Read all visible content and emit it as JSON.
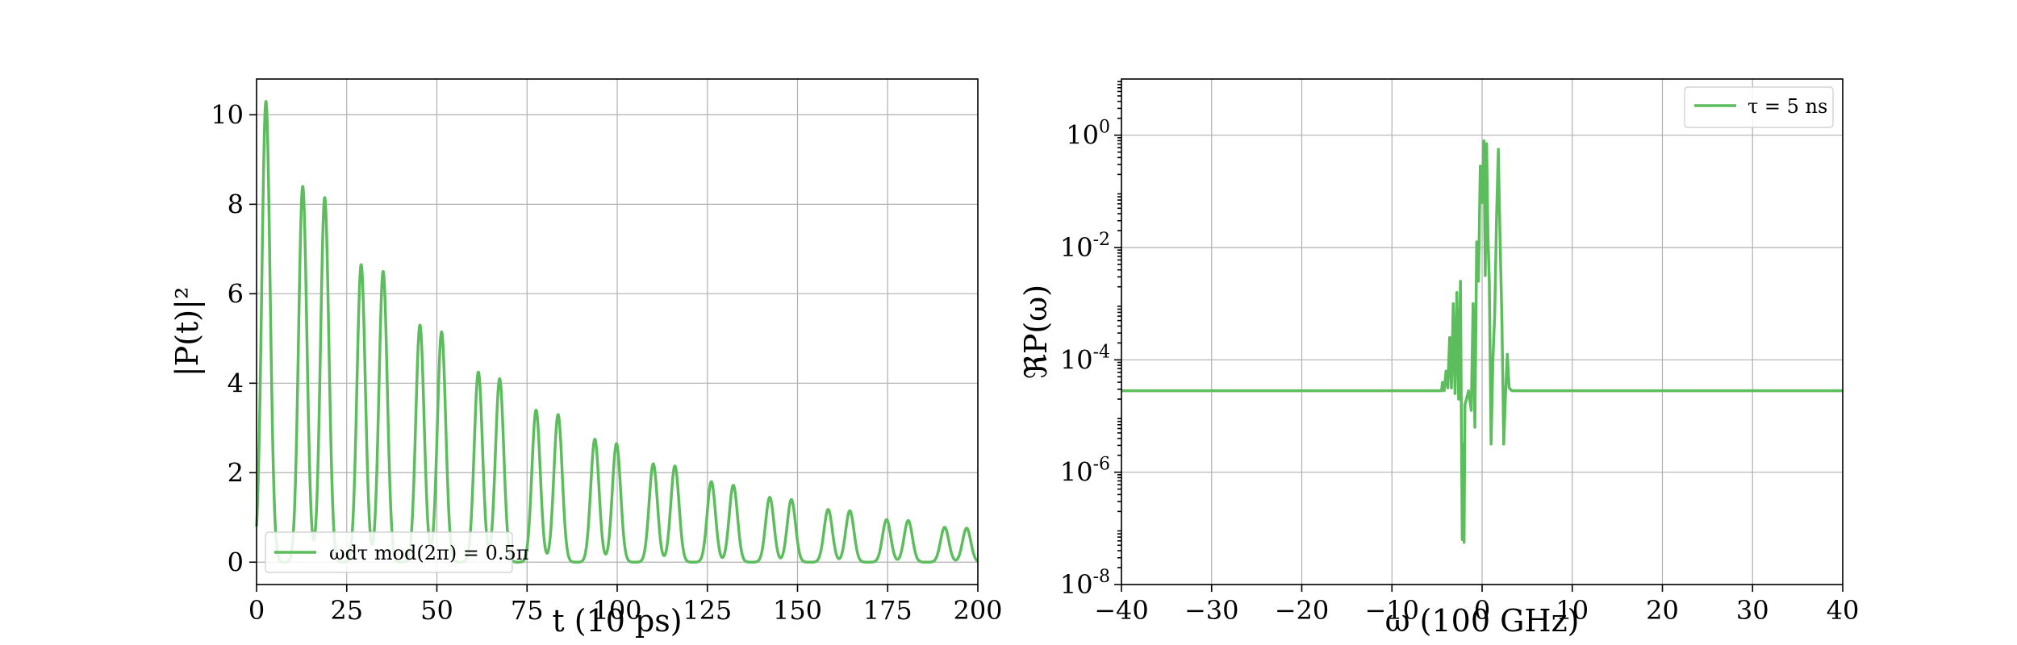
{
  "figure": {
    "line_color": "#5cbd5c",
    "grid_color": "#b0b0b0"
  },
  "chart_data": [
    {
      "type": "line",
      "title": "",
      "xlabel": "t (10 ps)",
      "ylabel": "|P(t)|²",
      "xlim": [
        0,
        200
      ],
      "ylim": [
        -0.5,
        10.8
      ],
      "grid": true,
      "legend_position": "lower-left",
      "x_ticks": [
        0,
        25,
        50,
        75,
        100,
        125,
        150,
        175,
        200
      ],
      "x_tick_labels": [
        "0",
        "25",
        "50",
        "75",
        "100",
        "125",
        "150",
        "175",
        "200"
      ],
      "y_ticks": [
        0,
        2,
        4,
        6,
        8,
        10
      ],
      "y_tick_labels": [
        "0",
        "2",
        "4",
        "6",
        "8",
        "10"
      ],
      "series": [
        {
          "name": "ωdτ mod(2π) = 0.5π",
          "color": "#5cbd5c",
          "peaks": [
            {
              "t": 2.6,
              "value": 10.3
            },
            {
              "t": 12.8,
              "value": 8.4
            },
            {
              "t": 18.9,
              "value": 8.15
            },
            {
              "t": 29.0,
              "value": 6.65
            },
            {
              "t": 35.1,
              "value": 6.5
            },
            {
              "t": 45.3,
              "value": 5.3
            },
            {
              "t": 51.3,
              "value": 5.15
            },
            {
              "t": 61.5,
              "value": 4.25
            },
            {
              "t": 67.4,
              "value": 4.1
            },
            {
              "t": 77.5,
              "value": 3.4
            },
            {
              "t": 83.6,
              "value": 3.3
            },
            {
              "t": 93.8,
              "value": 2.75
            },
            {
              "t": 99.8,
              "value": 2.65
            },
            {
              "t": 110.0,
              "value": 2.2
            },
            {
              "t": 116.0,
              "value": 2.15
            },
            {
              "t": 126.1,
              "value": 1.8
            },
            {
              "t": 132.2,
              "value": 1.72
            },
            {
              "t": 142.3,
              "value": 1.45
            },
            {
              "t": 148.3,
              "value": 1.4
            },
            {
              "t": 158.5,
              "value": 1.18
            },
            {
              "t": 164.5,
              "value": 1.15
            },
            {
              "t": 174.7,
              "value": 0.95
            },
            {
              "t": 180.7,
              "value": 0.93
            },
            {
              "t": 190.8,
              "value": 0.78
            },
            {
              "t": 196.9,
              "value": 0.76
            }
          ],
          "baseline": 0.0,
          "end_value": 0.1
        }
      ]
    },
    {
      "type": "line",
      "title": "",
      "xlabel": "ω (100 GHz)",
      "ylabel": "ℜP(ω)",
      "xlim": [
        -40,
        40
      ],
      "ylim_log10": [
        -8,
        1
      ],
      "yscale": "log",
      "grid": true,
      "legend_position": "top-right",
      "x_ticks": [
        -40,
        -30,
        -20,
        -10,
        0,
        10,
        20,
        30,
        40
      ],
      "x_tick_labels": [
        "−40",
        "−30",
        "−20",
        "−10",
        "0",
        "10",
        "20",
        "30",
        "40"
      ],
      "y_ticks_log10": [
        0,
        -2,
        -4,
        -6,
        -8
      ],
      "y_tick_base": "10",
      "y_tick_exponents": [
        "0",
        "-2",
        "-4",
        "-6",
        "-8"
      ],
      "series": [
        {
          "name": "τ = 5 ns",
          "color": "#5cbd5c",
          "baseline_log10": -4.55,
          "points": [
            {
              "w": -40,
              "log10": -4.55
            },
            {
              "w": -4.5,
              "log10": -4.55
            },
            {
              "w": -4.4,
              "log10": -4.4
            },
            {
              "w": -4.2,
              "log10": -4.55
            },
            {
              "w": -4.0,
              "log10": -4.2
            },
            {
              "w": -3.8,
              "log10": -4.5
            },
            {
              "w": -3.6,
              "log10": -3.6
            },
            {
              "w": -3.4,
              "log10": -4.5
            },
            {
              "w": -3.2,
              "log10": -3.0
            },
            {
              "w": -3.0,
              "log10": -4.6
            },
            {
              "w": -2.8,
              "log10": -2.8
            },
            {
              "w": -2.6,
              "log10": -4.7
            },
            {
              "w": -2.4,
              "log10": -2.6
            },
            {
              "w": -2.3,
              "log10": -5.0
            },
            {
              "w": -2.2,
              "log10": -7.2
            },
            {
              "w": -2.1,
              "log10": -5.5
            },
            {
              "w": -2.0,
              "log10": -7.25
            },
            {
              "w": -1.9,
              "log10": -4.8
            },
            {
              "w": -1.5,
              "log10": -4.55
            },
            {
              "w": -1.2,
              "log10": -4.9
            },
            {
              "w": -1.0,
              "log10": -3.0
            },
            {
              "w": -0.8,
              "log10": -5.2
            },
            {
              "w": -0.6,
              "log10": -1.9
            },
            {
              "w": -0.4,
              "log10": -2.6
            },
            {
              "w": -0.2,
              "log10": -0.55
            },
            {
              "w": 0.0,
              "log10": -1.2
            },
            {
              "w": 0.2,
              "log10": -0.1
            },
            {
              "w": 0.35,
              "log10": -2.5
            },
            {
              "w": 0.5,
              "log10": -0.15
            },
            {
              "w": 0.65,
              "log10": -1.8
            },
            {
              "w": 0.8,
              "log10": -2.6
            },
            {
              "w": 1.0,
              "log10": -5.5
            },
            {
              "w": 1.2,
              "log10": -4.0
            },
            {
              "w": 1.4,
              "log10": -3.2
            },
            {
              "w": 1.6,
              "log10": -1.5
            },
            {
              "w": 1.8,
              "log10": -0.25
            },
            {
              "w": 2.0,
              "log10": -1.9
            },
            {
              "w": 2.2,
              "log10": -3.3
            },
            {
              "w": 2.4,
              "log10": -5.5
            },
            {
              "w": 2.6,
              "log10": -4.6
            },
            {
              "w": 2.8,
              "log10": -3.9
            },
            {
              "w": 3.0,
              "log10": -4.5
            },
            {
              "w": 3.3,
              "log10": -4.55
            },
            {
              "w": 40,
              "log10": -4.55
            }
          ]
        }
      ]
    }
  ]
}
